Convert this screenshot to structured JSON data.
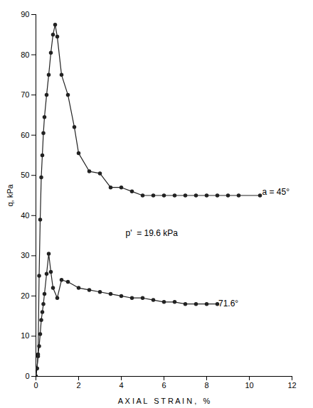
{
  "chart_data": {
    "type": "line",
    "xlabel": "A X I A L   S T R A I N ,   %",
    "ylabel": "q, kPa",
    "xlim": [
      0,
      12
    ],
    "ylim": [
      0,
      90
    ],
    "xticks": [
      0,
      2,
      4,
      6,
      8,
      10,
      12
    ],
    "yticks": [
      0,
      10,
      20,
      30,
      40,
      50,
      60,
      70,
      80,
      90
    ],
    "grid": false,
    "series": [
      {
        "color": "#222222",
        "marker": "circle",
        "line_style": "solid",
        "x": [
          0.0,
          0.05,
          0.1,
          0.15,
          0.2,
          0.25,
          0.3,
          0.35,
          0.4,
          0.5,
          0.6,
          0.7,
          0.8,
          0.9,
          1.0,
          1.2,
          1.5,
          1.8,
          2.0,
          2.5,
          3.0,
          3.5,
          4.0,
          4.5,
          5.0,
          5.5,
          6.0,
          6.5,
          7.0,
          7.5,
          8.0,
          8.5,
          9.0,
          9.5,
          10.5
        ],
        "values": [
          0.0,
          2.0,
          5.0,
          25.0,
          39.0,
          49.5,
          55.0,
          60.5,
          64.5,
          70.0,
          75.0,
          80.5,
          85.0,
          87.5,
          84.5,
          75.0,
          70.0,
          62.0,
          55.5,
          51.0,
          50.5,
          47.0,
          47.0,
          46.0,
          45.0,
          45.0,
          45.0,
          45.0,
          45.0,
          45.0,
          45.0,
          45.0,
          45.0,
          45.0,
          45.0
        ]
      },
      {
        "color": "#222222",
        "marker": "circle",
        "line_style": "solid",
        "x": [
          0.0,
          0.05,
          0.1,
          0.15,
          0.2,
          0.25,
          0.3,
          0.35,
          0.4,
          0.5,
          0.6,
          0.7,
          0.8,
          1.0,
          1.2,
          1.5,
          2.0,
          2.5,
          3.0,
          3.5,
          4.0,
          4.5,
          5.0,
          5.5,
          6.0,
          6.5,
          7.0,
          7.5,
          8.0,
          8.5
        ],
        "values": [
          0.0,
          2.0,
          5.5,
          7.5,
          10.5,
          14.0,
          16.0,
          18.0,
          20.5,
          25.5,
          30.5,
          26.0,
          22.0,
          19.5,
          24.0,
          23.5,
          22.0,
          21.5,
          21.0,
          20.5,
          20.0,
          19.5,
          19.5,
          19.0,
          18.5,
          18.5,
          18.0,
          18.0,
          18.0,
          18.0
        ]
      }
    ],
    "annotations": [
      {
        "text": "a = 45°",
        "x": 10.6,
        "y": 45.2
      },
      {
        "text": "71.6°",
        "x": 8.55,
        "y": 17.5
      },
      {
        "text": "p'  = 19.6 kPa",
        "x": 4.2,
        "y": 35.0
      }
    ]
  }
}
